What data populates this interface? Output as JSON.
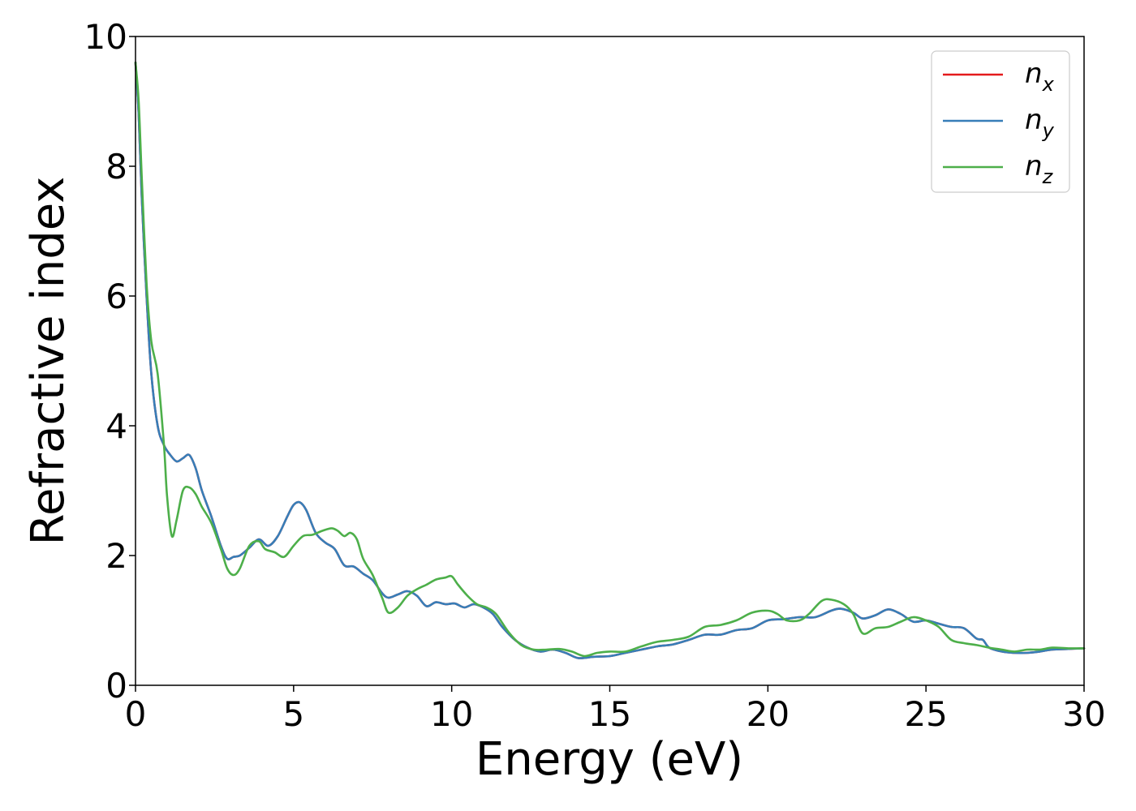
{
  "chart_data": {
    "type": "line",
    "title": "",
    "xlabel": "Energy (eV)",
    "ylabel": "Refractive index",
    "xlim": [
      0,
      30
    ],
    "ylim": [
      0,
      10
    ],
    "xticks": [
      0,
      5,
      10,
      15,
      20,
      25,
      30
    ],
    "yticks": [
      0,
      2,
      4,
      6,
      8,
      10
    ],
    "grid": false,
    "legend_position": "top-right",
    "series": [
      {
        "name": "n",
        "subscript": "x",
        "color": "#e41a1c",
        "x": [
          0,
          0.1,
          0.2,
          0.35,
          0.5,
          0.7,
          0.9,
          1.1,
          1.3,
          1.5,
          1.7,
          1.9,
          2.1,
          2.4,
          2.7,
          2.9,
          3.1,
          3.3,
          3.6,
          3.9,
          4.2,
          4.5,
          4.8,
          5.0,
          5.2,
          5.4,
          5.7,
          6.0,
          6.3,
          6.6,
          6.9,
          7.2,
          7.5,
          7.8,
          8.0,
          8.3,
          8.6,
          8.9,
          9.2,
          9.5,
          9.8,
          10.1,
          10.4,
          10.7,
          11.0,
          11.3,
          11.6,
          12.0,
          12.4,
          12.8,
          13.2,
          13.6,
          14.0,
          14.5,
          15.0,
          15.5,
          16.0,
          16.5,
          17.0,
          17.5,
          18.0,
          18.5,
          19.0,
          19.5,
          20.0,
          20.5,
          21.0,
          21.5,
          22.0,
          22.3,
          22.7,
          23.0,
          23.4,
          23.8,
          24.2,
          24.6,
          25.0,
          25.4,
          25.8,
          26.2,
          26.6,
          26.8,
          27.0,
          27.4,
          27.8,
          28.2,
          28.6,
          29.0,
          29.5,
          30.0
        ],
        "values": [
          9.6,
          8.8,
          7.5,
          6.0,
          4.8,
          4.0,
          3.7,
          3.55,
          3.45,
          3.5,
          3.55,
          3.35,
          3.0,
          2.6,
          2.15,
          1.95,
          1.98,
          2.0,
          2.12,
          2.25,
          2.15,
          2.3,
          2.6,
          2.78,
          2.82,
          2.7,
          2.35,
          2.2,
          2.1,
          1.85,
          1.83,
          1.72,
          1.62,
          1.42,
          1.35,
          1.4,
          1.45,
          1.38,
          1.22,
          1.28,
          1.25,
          1.26,
          1.2,
          1.25,
          1.2,
          1.1,
          0.9,
          0.7,
          0.58,
          0.52,
          0.55,
          0.5,
          0.42,
          0.44,
          0.45,
          0.5,
          0.55,
          0.6,
          0.63,
          0.7,
          0.78,
          0.78,
          0.85,
          0.88,
          1.0,
          1.02,
          1.05,
          1.05,
          1.15,
          1.18,
          1.12,
          1.03,
          1.08,
          1.17,
          1.1,
          0.98,
          1.0,
          0.95,
          0.9,
          0.88,
          0.72,
          0.7,
          0.58,
          0.52,
          0.5,
          0.5,
          0.52,
          0.55,
          0.56,
          0.57
        ]
      },
      {
        "name": "n",
        "subscript": "y",
        "color": "#377eb8",
        "x": [
          0,
          0.1,
          0.2,
          0.35,
          0.5,
          0.7,
          0.9,
          1.1,
          1.3,
          1.5,
          1.7,
          1.9,
          2.1,
          2.4,
          2.7,
          2.9,
          3.1,
          3.3,
          3.6,
          3.9,
          4.2,
          4.5,
          4.8,
          5.0,
          5.2,
          5.4,
          5.7,
          6.0,
          6.3,
          6.6,
          6.9,
          7.2,
          7.5,
          7.8,
          8.0,
          8.3,
          8.6,
          8.9,
          9.2,
          9.5,
          9.8,
          10.1,
          10.4,
          10.7,
          11.0,
          11.3,
          11.6,
          12.0,
          12.4,
          12.8,
          13.2,
          13.6,
          14.0,
          14.5,
          15.0,
          15.5,
          16.0,
          16.5,
          17.0,
          17.5,
          18.0,
          18.5,
          19.0,
          19.5,
          20.0,
          20.5,
          21.0,
          21.5,
          22.0,
          22.3,
          22.7,
          23.0,
          23.4,
          23.8,
          24.2,
          24.6,
          25.0,
          25.4,
          25.8,
          26.2,
          26.6,
          26.8,
          27.0,
          27.4,
          27.8,
          28.2,
          28.6,
          29.0,
          29.5,
          30.0
        ],
        "values": [
          9.6,
          8.8,
          7.5,
          6.0,
          4.8,
          4.0,
          3.7,
          3.55,
          3.45,
          3.5,
          3.55,
          3.35,
          3.0,
          2.6,
          2.15,
          1.95,
          1.98,
          2.0,
          2.12,
          2.25,
          2.15,
          2.3,
          2.6,
          2.78,
          2.82,
          2.7,
          2.35,
          2.2,
          2.1,
          1.85,
          1.83,
          1.72,
          1.62,
          1.42,
          1.35,
          1.4,
          1.45,
          1.38,
          1.22,
          1.28,
          1.25,
          1.26,
          1.2,
          1.25,
          1.2,
          1.1,
          0.9,
          0.7,
          0.58,
          0.52,
          0.55,
          0.5,
          0.42,
          0.44,
          0.45,
          0.5,
          0.55,
          0.6,
          0.63,
          0.7,
          0.78,
          0.78,
          0.85,
          0.88,
          1.0,
          1.02,
          1.05,
          1.05,
          1.15,
          1.18,
          1.12,
          1.03,
          1.08,
          1.17,
          1.1,
          0.98,
          1.0,
          0.95,
          0.9,
          0.88,
          0.72,
          0.7,
          0.58,
          0.52,
          0.5,
          0.5,
          0.52,
          0.55,
          0.56,
          0.57
        ]
      },
      {
        "name": "n",
        "subscript": "z",
        "color": "#4daf4a",
        "x": [
          0,
          0.1,
          0.2,
          0.35,
          0.5,
          0.7,
          0.9,
          1.0,
          1.15,
          1.3,
          1.5,
          1.7,
          1.9,
          2.1,
          2.4,
          2.7,
          2.9,
          3.1,
          3.3,
          3.6,
          3.9,
          4.1,
          4.4,
          4.7,
          5.0,
          5.3,
          5.6,
          5.9,
          6.2,
          6.4,
          6.6,
          6.8,
          7.0,
          7.2,
          7.5,
          7.8,
          8.0,
          8.3,
          8.6,
          8.9,
          9.2,
          9.5,
          9.8,
          10.0,
          10.2,
          10.5,
          10.8,
          11.1,
          11.4,
          11.8,
          12.2,
          12.6,
          13.0,
          13.4,
          13.8,
          14.2,
          14.6,
          15.0,
          15.5,
          16.0,
          16.5,
          17.0,
          17.5,
          18.0,
          18.5,
          19.0,
          19.5,
          20.0,
          20.3,
          20.6,
          21.0,
          21.3,
          21.7,
          22.0,
          22.4,
          22.7,
          23.0,
          23.4,
          23.8,
          24.2,
          24.6,
          25.0,
          25.4,
          25.8,
          26.2,
          26.6,
          27.0,
          27.4,
          27.8,
          28.2,
          28.6,
          29.0,
          29.5,
          30.0
        ],
        "values": [
          9.6,
          9.0,
          7.8,
          6.2,
          5.3,
          4.8,
          3.7,
          2.9,
          2.3,
          2.55,
          3.0,
          3.05,
          2.95,
          2.75,
          2.5,
          2.1,
          1.8,
          1.7,
          1.8,
          2.15,
          2.22,
          2.1,
          2.05,
          1.98,
          2.15,
          2.3,
          2.32,
          2.38,
          2.42,
          2.38,
          2.3,
          2.35,
          2.25,
          1.95,
          1.7,
          1.35,
          1.12,
          1.2,
          1.38,
          1.48,
          1.55,
          1.63,
          1.66,
          1.68,
          1.55,
          1.38,
          1.25,
          1.2,
          1.1,
          0.82,
          0.62,
          0.55,
          0.55,
          0.56,
          0.52,
          0.45,
          0.5,
          0.52,
          0.52,
          0.6,
          0.67,
          0.7,
          0.75,
          0.9,
          0.93,
          1.0,
          1.12,
          1.15,
          1.1,
          1.0,
          1.0,
          1.1,
          1.3,
          1.32,
          1.25,
          1.1,
          0.8,
          0.88,
          0.9,
          0.98,
          1.05,
          1.0,
          0.9,
          0.7,
          0.65,
          0.62,
          0.58,
          0.55,
          0.52,
          0.55,
          0.55,
          0.58,
          0.57,
          0.57
        ]
      }
    ]
  }
}
